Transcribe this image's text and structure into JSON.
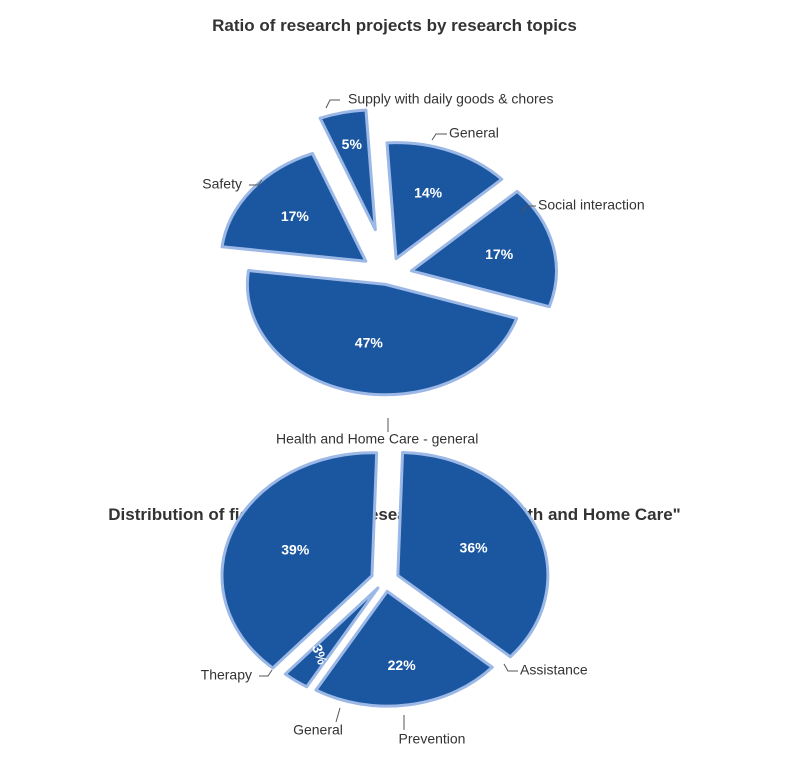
{
  "chart_data": [
    {
      "type": "pie",
      "title": "Ratio of research projects by research topics",
      "slices": [
        {
          "label": "Supply with daily goods & chores",
          "value": 5,
          "value_label": "5%"
        },
        {
          "label": "General",
          "value": 14,
          "value_label": "14%"
        },
        {
          "label": "Social interaction",
          "value": 17,
          "value_label": "17%"
        },
        {
          "label": "Health and Home Care - general",
          "value": 47,
          "value_label": "47%"
        },
        {
          "label": "Safety",
          "value": 17,
          "value_label": "17%"
        }
      ],
      "exploded": true,
      "color": "#1b56a0",
      "edge_color": "#9bb8e6"
    },
    {
      "type": "pie",
      "title": "Distribution of fields within the research topic  \"Health and Home Care\"",
      "slices": [
        {
          "label": "Assistance",
          "value": 36,
          "value_label": "36%"
        },
        {
          "label": "Prevention",
          "value": 22,
          "value_label": "22%"
        },
        {
          "label": "General",
          "value": 3,
          "value_label": "3%"
        },
        {
          "label": "Therapy",
          "value": 39,
          "value_label": "39%"
        }
      ],
      "exploded": true,
      "color": "#1b56a0",
      "edge_color": "#9bb8e6"
    }
  ]
}
